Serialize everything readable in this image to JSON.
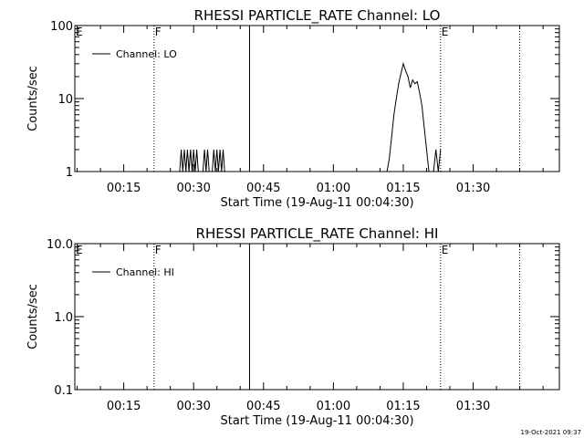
{
  "footer": {
    "timestamp": "19-Oct-2021 09:37"
  },
  "chart_data": [
    {
      "type": "line",
      "title": "RHESSI PARTICLE_RATE Channel: LO",
      "xlabel": "Start Time (19-Aug-11 00:04:30)",
      "ylabel": "Counts/sec",
      "yscale": "log",
      "ylim": [
        1,
        100
      ],
      "xlim": [
        "00:04:30",
        "01:48:30"
      ],
      "x_ticks": [
        "00:15",
        "00:30",
        "00:45",
        "01:00",
        "01:15",
        "01:30"
      ],
      "y_ticks": [
        {
          "value": 1,
          "label": "1"
        },
        {
          "value": 10,
          "label": "10"
        },
        {
          "value": 100,
          "label": "100"
        }
      ],
      "legend": {
        "position": "top-left",
        "entries": [
          "Channel: LO"
        ]
      },
      "markers": [
        {
          "time": "00:04:30",
          "label": "E",
          "style": "none"
        },
        {
          "time": "00:21:30",
          "label": "F",
          "style": "dotted"
        },
        {
          "time": "00:42:00",
          "label": "",
          "style": "solid"
        },
        {
          "time": "01:23:00",
          "label": "E",
          "style": "dotted"
        },
        {
          "time": "01:40:00",
          "label": "",
          "style": "dotted"
        }
      ],
      "series": [
        {
          "name": "Channel: LO",
          "x": [
            "00:27:00",
            "00:27:20",
            "00:27:40",
            "00:28:00",
            "00:28:20",
            "00:28:40",
            "00:29:00",
            "00:29:20",
            "00:29:40",
            "00:30:00",
            "00:30:20",
            "00:30:40",
            "00:31:00",
            "00:31:20",
            "00:31:40",
            "00:32:00",
            "00:32:20",
            "00:32:40",
            "00:33:00",
            "00:33:20",
            "00:33:40",
            "00:34:00",
            "00:34:20",
            "00:34:40",
            "00:35:00",
            "00:35:20",
            "00:35:40",
            "00:36:00",
            "00:36:20",
            "00:36:40"
          ],
          "y": [
            1,
            2,
            1,
            2,
            1,
            2,
            1,
            2,
            1,
            2,
            1,
            2,
            1,
            1,
            1,
            1,
            2,
            1,
            2,
            1,
            1,
            1,
            2,
            1,
            2,
            1,
            2,
            1,
            2,
            1
          ],
          "gaps_after": [
            29
          ]
        },
        {
          "name": "Channel: LO",
          "x": [
            "01:11:30",
            "01:12:00",
            "01:12:30",
            "01:13:00",
            "01:13:30",
            "01:14:00",
            "01:14:30",
            "01:15:00",
            "01:15:30",
            "01:16:00",
            "01:16:30",
            "01:17:00",
            "01:17:30",
            "01:18:00",
            "01:18:30",
            "01:19:00",
            "01:19:30",
            "01:20:00",
            "01:20:30"
          ],
          "y": [
            1,
            1.5,
            3,
            6,
            10,
            16,
            22,
            30,
            24,
            20,
            14,
            18,
            16,
            17,
            12,
            8,
            4,
            2,
            1
          ]
        },
        {
          "name": "Channel: LO",
          "x": [
            "01:21:30",
            "01:22:00",
            "01:22:30",
            "01:23:00"
          ],
          "y": [
            1,
            2,
            1,
            2
          ]
        }
      ]
    },
    {
      "type": "line",
      "title": "RHESSI PARTICLE_RATE Channel: HI",
      "xlabel": "Start Time (19-Aug-11 00:04:30)",
      "ylabel": "Counts/sec",
      "yscale": "log",
      "ylim": [
        0.1,
        10
      ],
      "xlim": [
        "00:04:30",
        "01:48:30"
      ],
      "x_ticks": [
        "00:15",
        "00:30",
        "00:45",
        "01:00",
        "01:15",
        "01:30"
      ],
      "y_ticks": [
        {
          "value": 0.1,
          "label": "0.1"
        },
        {
          "value": 1,
          "label": "1.0"
        },
        {
          "value": 10,
          "label": "10.0"
        }
      ],
      "legend": {
        "position": "top-left",
        "entries": [
          "Channel: HI"
        ]
      },
      "markers": [
        {
          "time": "00:04:30",
          "label": "E",
          "style": "none"
        },
        {
          "time": "00:21:30",
          "label": "F",
          "style": "dotted"
        },
        {
          "time": "00:42:00",
          "label": "",
          "style": "solid"
        },
        {
          "time": "01:23:00",
          "label": "E",
          "style": "dotted"
        },
        {
          "time": "01:40:00",
          "label": "",
          "style": "dotted"
        }
      ],
      "series": []
    }
  ]
}
